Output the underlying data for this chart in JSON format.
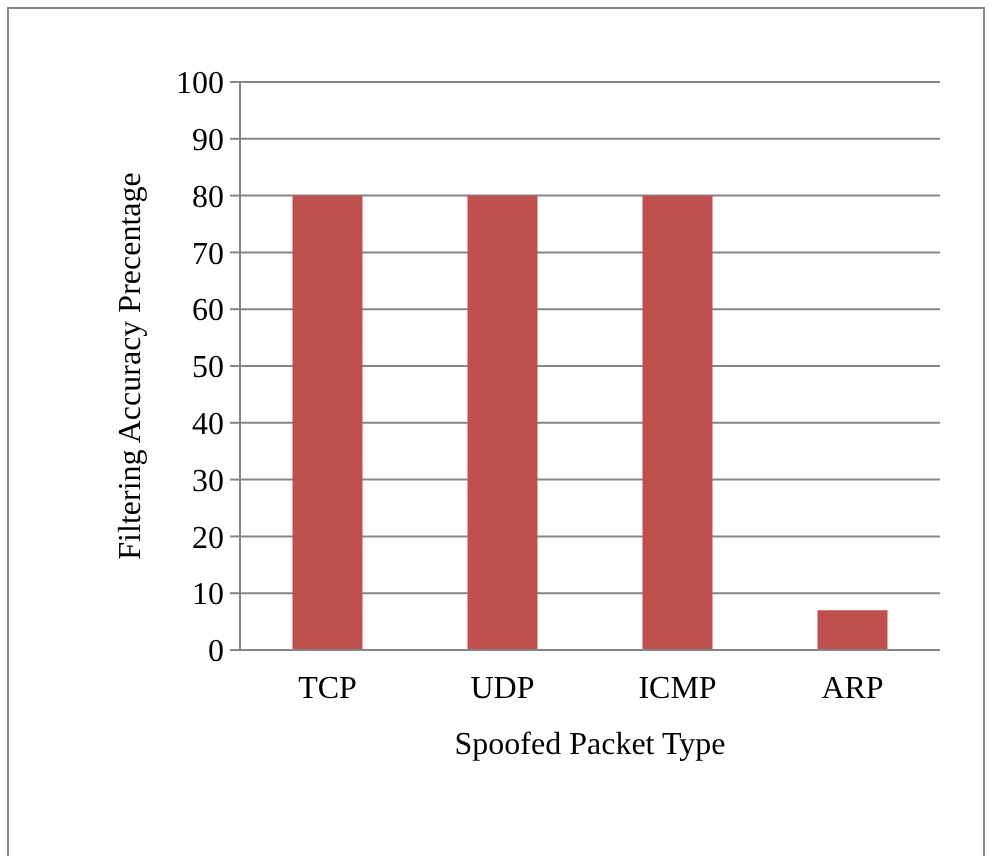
{
  "chart_data": {
    "type": "bar",
    "xlabel": "Spoofed Packet Type",
    "ylabel": "Filtering Accuracy Precentage",
    "categories": [
      "TCP",
      "UDP",
      "ICMP",
      "ARP"
    ],
    "values": [
      80,
      80,
      80,
      7
    ],
    "color": "#c0504d",
    "ylim": [
      0,
      100
    ],
    "yticks": [
      0,
      10,
      20,
      30,
      40,
      50,
      60,
      70,
      80,
      90,
      100
    ],
    "grid": "y"
  }
}
